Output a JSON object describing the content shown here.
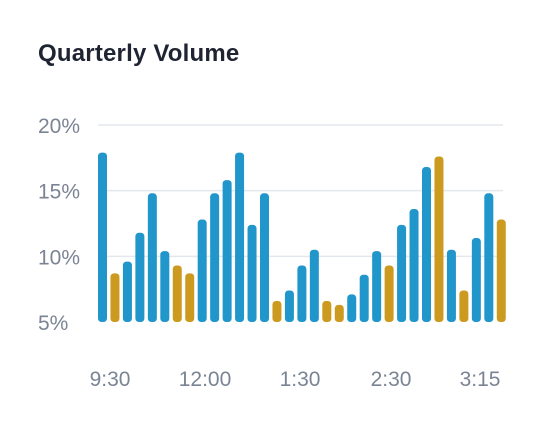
{
  "title": "Quarterly Volume",
  "chart_data": {
    "type": "bar",
    "title": "Quarterly Volume",
    "xlabel": "",
    "ylabel": "",
    "ylim": [
      5,
      20
    ],
    "y_ticks": [
      "20%",
      "15%",
      "10%",
      "5%"
    ],
    "y_tick_values": [
      20,
      15,
      10,
      5
    ],
    "x_tick_labels": [
      "9:30",
      "12:00",
      "1:30",
      "2:30",
      "3:15"
    ],
    "grid": true,
    "colors": {
      "blue": "#2196cb",
      "gold": "#cc9a1f",
      "grid": "#e3e7ee"
    },
    "values": [
      17.9,
      8.7,
      9.6,
      11.8,
      14.8,
      10.4,
      9.3,
      8.7,
      12.8,
      14.8,
      15.8,
      17.9,
      12.4,
      14.8,
      6.6,
      7.4,
      9.3,
      10.5,
      6.6,
      6.3,
      7.1,
      8.6,
      10.4,
      9.3,
      12.4,
      13.6,
      16.8,
      17.6,
      10.5,
      7.4,
      11.4,
      14.8,
      12.8
    ],
    "bar_colors": [
      "blue",
      "gold",
      "blue",
      "blue",
      "blue",
      "blue",
      "gold",
      "gold",
      "blue",
      "blue",
      "blue",
      "blue",
      "blue",
      "blue",
      "gold",
      "blue",
      "blue",
      "blue",
      "gold",
      "gold",
      "blue",
      "blue",
      "blue",
      "gold",
      "blue",
      "blue",
      "blue",
      "gold",
      "blue",
      "gold",
      "blue",
      "blue",
      "gold"
    ]
  }
}
